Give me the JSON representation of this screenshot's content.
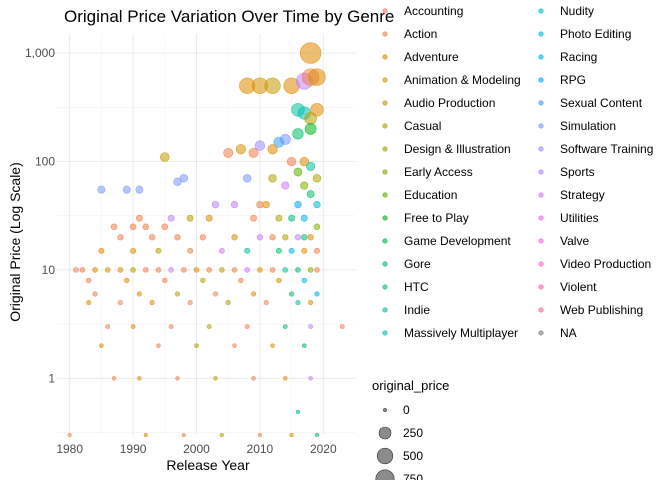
{
  "chart_data": {
    "type": "scatter",
    "title": "Original Price Variation Over Time by Genre",
    "xlabel": "Release Year",
    "ylabel": "Original Price (Log Scale)",
    "xlim": [
      1978,
      2025
    ],
    "ylim": [
      0.3,
      1500
    ],
    "y_scale": "log",
    "grid": true,
    "x_ticks": [
      1980,
      1990,
      2000,
      2010,
      2020
    ],
    "y_ticks": [
      {
        "value": 1,
        "label": "1"
      },
      {
        "value": 10,
        "label": "10"
      },
      {
        "value": 100,
        "label": "100"
      },
      {
        "value": 1000,
        "label": "1,000"
      }
    ],
    "legend_title": "genre",
    "legend": [
      {
        "name": "Accounting",
        "color": "#F8766D"
      },
      {
        "name": "Action",
        "color": "#F07E4B"
      },
      {
        "name": "Adventure",
        "color": "#E08B00"
      },
      {
        "name": "Animation & Modeling",
        "color": "#D39200"
      },
      {
        "name": "Audio Production",
        "color": "#C49A00"
      },
      {
        "name": "Casual",
        "color": "#B3A000"
      },
      {
        "name": "Design & Illustration",
        "color": "#9FA600"
      },
      {
        "name": "Early Access",
        "color": "#85AD00"
      },
      {
        "name": "Education",
        "color": "#5EB300"
      },
      {
        "name": "Free to Play",
        "color": "#00B81F"
      },
      {
        "name": "Game Development",
        "color": "#00BB4E"
      },
      {
        "name": "Gore",
        "color": "#00BE6C"
      },
      {
        "name": "HTC",
        "color": "#00C087"
      },
      {
        "name": "Indie",
        "color": "#00C19F"
      },
      {
        "name": "Massively Multiplayer",
        "color": "#00C0B5"
      },
      {
        "name": "Nudity",
        "color": "#00BECB"
      },
      {
        "name": "Photo Editing",
        "color": "#00BADE"
      },
      {
        "name": "Racing",
        "color": "#00B4EF"
      },
      {
        "name": "RPG",
        "color": "#00ABFD"
      },
      {
        "name": "Sexual Content",
        "color": "#35A2FF"
      },
      {
        "name": "Simulation",
        "color": "#7997FF"
      },
      {
        "name": "Software Training",
        "color": "#9F8CFF"
      },
      {
        "name": "Sports",
        "color": "#BD81FF"
      },
      {
        "name": "Strategy",
        "color": "#D575FE"
      },
      {
        "name": "Utilities",
        "color": "#E76BF3"
      },
      {
        "name": "Valve",
        "color": "#F564E3"
      },
      {
        "name": "Video Production",
        "color": "#FD61D1"
      },
      {
        "name": "Violent",
        "color": "#FF64B0"
      },
      {
        "name": "Web Publishing",
        "color": "#FF6C91"
      },
      {
        "name": "NA",
        "color": "#7F7F7F"
      }
    ],
    "size_legend": {
      "title": "original_price",
      "values": [
        0,
        250,
        500,
        750
      ]
    },
    "points": [
      {
        "x": 2018,
        "y": 1000,
        "size": 1000,
        "genre": "Adventure"
      },
      {
        "x": 2008,
        "y": 500,
        "size": 500,
        "genre": "Adventure"
      },
      {
        "x": 2010,
        "y": 500,
        "size": 500,
        "genre": "Animation & Modeling"
      },
      {
        "x": 2012,
        "y": 500,
        "size": 500,
        "genre": "Audio Production"
      },
      {
        "x": 2015,
        "y": 500,
        "size": 500,
        "genre": "Adventure"
      },
      {
        "x": 2017,
        "y": 550,
        "size": 550,
        "genre": "Sports"
      },
      {
        "x": 2018,
        "y": 600,
        "size": 600,
        "genre": "Action"
      },
      {
        "x": 2019,
        "y": 600,
        "size": 600,
        "genre": "Adventure"
      },
      {
        "x": 2016,
        "y": 300,
        "size": 300,
        "genre": "Indie"
      },
      {
        "x": 2017,
        "y": 280,
        "size": 280,
        "genre": "Massively Multiplayer"
      },
      {
        "x": 2018,
        "y": 250,
        "size": 250,
        "genre": "Casual"
      },
      {
        "x": 2019,
        "y": 300,
        "size": 300,
        "genre": "Adventure"
      },
      {
        "x": 2018,
        "y": 200,
        "size": 200,
        "genre": "Free to Play"
      },
      {
        "x": 2016,
        "y": 180,
        "size": 180,
        "genre": "Gore"
      },
      {
        "x": 2014,
        "y": 160,
        "size": 160,
        "genre": "Simulation"
      },
      {
        "x": 2013,
        "y": 150,
        "size": 150,
        "genre": "Sexual Content"
      },
      {
        "x": 2012,
        "y": 130,
        "size": 130,
        "genre": "Adventure"
      },
      {
        "x": 2010,
        "y": 140,
        "size": 140,
        "genre": "Software Training"
      },
      {
        "x": 2009,
        "y": 120,
        "size": 120,
        "genre": "Action"
      },
      {
        "x": 2005,
        "y": 120,
        "size": 120,
        "genre": "Action"
      },
      {
        "x": 2007,
        "y": 130,
        "size": 130,
        "genre": "Animation & Modeling"
      },
      {
        "x": 1995,
        "y": 110,
        "size": 110,
        "genre": "Audio Production"
      },
      {
        "x": 2015,
        "y": 100,
        "size": 100,
        "genre": "Action"
      },
      {
        "x": 2017,
        "y": 100,
        "size": 100,
        "genre": "Adventure"
      },
      {
        "x": 2016,
        "y": 80,
        "size": 80,
        "genre": "Education"
      },
      {
        "x": 2018,
        "y": 90,
        "size": 90,
        "genre": "Indie"
      },
      {
        "x": 2019,
        "y": 70,
        "size": 70,
        "genre": "Casual"
      },
      {
        "x": 2017,
        "y": 60,
        "size": 60,
        "genre": "Early Access"
      },
      {
        "x": 2014,
        "y": 60,
        "size": 60,
        "genre": "Strategy"
      },
      {
        "x": 2012,
        "y": 70,
        "size": 70,
        "genre": "Casual"
      },
      {
        "x": 2008,
        "y": 70,
        "size": 70,
        "genre": "Simulation"
      },
      {
        "x": 1998,
        "y": 70,
        "size": 70,
        "genre": "Simulation"
      },
      {
        "x": 1997,
        "y": 65,
        "size": 65,
        "genre": "Simulation"
      },
      {
        "x": 1991,
        "y": 55,
        "size": 55,
        "genre": "Simulation"
      },
      {
        "x": 1989,
        "y": 55,
        "size": 55,
        "genre": "Simulation"
      },
      {
        "x": 1985,
        "y": 55,
        "size": 55,
        "genre": "Simulation"
      },
      {
        "x": 2003,
        "y": 40,
        "size": 40,
        "genre": "Sports"
      },
      {
        "x": 2006,
        "y": 40,
        "size": 40,
        "genre": "Sports"
      },
      {
        "x": 2010,
        "y": 40,
        "size": 40,
        "genre": "Action"
      },
      {
        "x": 2011,
        "y": 40,
        "size": 40,
        "genre": "Adventure"
      },
      {
        "x": 2016,
        "y": 40,
        "size": 40,
        "genre": "RPG"
      },
      {
        "x": 2018,
        "y": 50,
        "size": 50,
        "genre": "Gore"
      },
      {
        "x": 2019,
        "y": 40,
        "size": 40,
        "genre": "Nudity"
      },
      {
        "x": 2017,
        "y": 30,
        "size": 30,
        "genre": "Racing"
      },
      {
        "x": 2015,
        "y": 30,
        "size": 30,
        "genre": "HTC"
      },
      {
        "x": 2013,
        "y": 30,
        "size": 30,
        "genre": "Casual"
      },
      {
        "x": 2009,
        "y": 30,
        "size": 30,
        "genre": "Action"
      },
      {
        "x": 1999,
        "y": 30,
        "size": 30,
        "genre": "Casual"
      },
      {
        "x": 2002,
        "y": 30,
        "size": 30,
        "genre": "Adventure"
      },
      {
        "x": 1996,
        "y": 30,
        "size": 30,
        "genre": "Sports"
      },
      {
        "x": 1991,
        "y": 30,
        "size": 30,
        "genre": "Action"
      },
      {
        "x": 1995,
        "y": 25,
        "size": 25,
        "genre": "Action"
      },
      {
        "x": 1992,
        "y": 25,
        "size": 25,
        "genre": "Action"
      },
      {
        "x": 1990,
        "y": 25,
        "size": 25,
        "genre": "Action"
      },
      {
        "x": 1987,
        "y": 25,
        "size": 25,
        "genre": "Action"
      },
      {
        "x": 2019,
        "y": 25,
        "size": 25,
        "genre": "Early Access"
      },
      {
        "x": 2018,
        "y": 20,
        "size": 20,
        "genre": "Adventure"
      },
      {
        "x": 2017,
        "y": 20,
        "size": 20,
        "genre": "Gore"
      },
      {
        "x": 2016,
        "y": 20,
        "size": 20,
        "genre": "Sports"
      },
      {
        "x": 2014,
        "y": 20,
        "size": 20,
        "genre": "Casual"
      },
      {
        "x": 2012,
        "y": 20,
        "size": 20,
        "genre": "Action"
      },
      {
        "x": 2010,
        "y": 20,
        "size": 20,
        "genre": "Strategy"
      },
      {
        "x": 2006,
        "y": 20,
        "size": 20,
        "genre": "Adventure"
      },
      {
        "x": 2001,
        "y": 20,
        "size": 20,
        "genre": "Action"
      },
      {
        "x": 1997,
        "y": 20,
        "size": 20,
        "genre": "Action"
      },
      {
        "x": 1993,
        "y": 20,
        "size": 20,
        "genre": "Action"
      },
      {
        "x": 1988,
        "y": 20,
        "size": 20,
        "genre": "Action"
      },
      {
        "x": 1985,
        "y": 15,
        "size": 15,
        "genre": "Adventure"
      },
      {
        "x": 1990,
        "y": 15,
        "size": 15,
        "genre": "Adventure"
      },
      {
        "x": 1994,
        "y": 15,
        "size": 15,
        "genre": "Casual"
      },
      {
        "x": 1999,
        "y": 15,
        "size": 15,
        "genre": "Action"
      },
      {
        "x": 2004,
        "y": 15,
        "size": 15,
        "genre": "Strategy"
      },
      {
        "x": 2008,
        "y": 15,
        "size": 15,
        "genre": "Indie"
      },
      {
        "x": 2013,
        "y": 15,
        "size": 15,
        "genre": "Gore"
      },
      {
        "x": 2015,
        "y": 15,
        "size": 15,
        "genre": "Racing"
      },
      {
        "x": 2017,
        "y": 15,
        "size": 15,
        "genre": "Adventure"
      },
      {
        "x": 2019,
        "y": 15,
        "size": 15,
        "genre": "Action"
      },
      {
        "x": 1981,
        "y": 10,
        "size": 10,
        "genre": "Action"
      },
      {
        "x": 1982,
        "y": 10,
        "size": 10,
        "genre": "Action"
      },
      {
        "x": 1984,
        "y": 10,
        "size": 10,
        "genre": "Adventure"
      },
      {
        "x": 1986,
        "y": 10,
        "size": 10,
        "genre": "Animation & Modeling"
      },
      {
        "x": 1988,
        "y": 10,
        "size": 10,
        "genre": "Adventure"
      },
      {
        "x": 1990,
        "y": 10,
        "size": 10,
        "genre": "Casual"
      },
      {
        "x": 1992,
        "y": 10,
        "size": 10,
        "genre": "Action"
      },
      {
        "x": 1994,
        "y": 10,
        "size": 10,
        "genre": "Action"
      },
      {
        "x": 1996,
        "y": 10,
        "size": 10,
        "genre": "Sports"
      },
      {
        "x": 1998,
        "y": 10,
        "size": 10,
        "genre": "Action"
      },
      {
        "x": 2000,
        "y": 10,
        "size": 10,
        "genre": "Adventure"
      },
      {
        "x": 2002,
        "y": 10,
        "size": 10,
        "genre": "Action"
      },
      {
        "x": 2004,
        "y": 10,
        "size": 10,
        "genre": "Casual"
      },
      {
        "x": 2006,
        "y": 10,
        "size": 10,
        "genre": "Action"
      },
      {
        "x": 2008,
        "y": 10,
        "size": 10,
        "genre": "Strategy"
      },
      {
        "x": 2010,
        "y": 10,
        "size": 10,
        "genre": "Adventure"
      },
      {
        "x": 2012,
        "y": 10,
        "size": 10,
        "genre": "Action"
      },
      {
        "x": 2014,
        "y": 10,
        "size": 10,
        "genre": "Indie"
      },
      {
        "x": 2016,
        "y": 10,
        "size": 10,
        "genre": "Gore"
      },
      {
        "x": 2018,
        "y": 10,
        "size": 10,
        "genre": "Early Access"
      },
      {
        "x": 2019,
        "y": 10,
        "size": 10,
        "genre": "Action"
      },
      {
        "x": 1983,
        "y": 8,
        "size": 8,
        "genre": "Action"
      },
      {
        "x": 1989,
        "y": 8,
        "size": 8,
        "genre": "Adventure"
      },
      {
        "x": 1995,
        "y": 8,
        "size": 8,
        "genre": "Action"
      },
      {
        "x": 2001,
        "y": 8,
        "size": 8,
        "genre": "Casual"
      },
      {
        "x": 2007,
        "y": 8,
        "size": 8,
        "genre": "Action"
      },
      {
        "x": 2013,
        "y": 8,
        "size": 8,
        "genre": "Adventure"
      },
      {
        "x": 2017,
        "y": 8,
        "size": 8,
        "genre": "Racing"
      },
      {
        "x": 1984,
        "y": 6,
        "size": 6,
        "genre": "Action"
      },
      {
        "x": 1991,
        "y": 6,
        "size": 6,
        "genre": "Adventure"
      },
      {
        "x": 1997,
        "y": 6,
        "size": 6,
        "genre": "Casual"
      },
      {
        "x": 2003,
        "y": 6,
        "size": 6,
        "genre": "Action"
      },
      {
        "x": 2009,
        "y": 6,
        "size": 6,
        "genre": "Adventure"
      },
      {
        "x": 2015,
        "y": 6,
        "size": 6,
        "genre": "Gore"
      },
      {
        "x": 2019,
        "y": 6,
        "size": 6,
        "genre": "RPG"
      },
      {
        "x": 1983,
        "y": 5,
        "size": 5,
        "genre": "Adventure"
      },
      {
        "x": 1988,
        "y": 5,
        "size": 5,
        "genre": "Action"
      },
      {
        "x": 1993,
        "y": 5,
        "size": 5,
        "genre": "Adventure"
      },
      {
        "x": 1999,
        "y": 5,
        "size": 5,
        "genre": "Action"
      },
      {
        "x": 2005,
        "y": 5,
        "size": 5,
        "genre": "Casual"
      },
      {
        "x": 2011,
        "y": 5,
        "size": 5,
        "genre": "Action"
      },
      {
        "x": 2016,
        "y": 5,
        "size": 5,
        "genre": "Indie"
      },
      {
        "x": 2018,
        "y": 5,
        "size": 5,
        "genre": "Adventure"
      },
      {
        "x": 1986,
        "y": 3,
        "size": 3,
        "genre": "Action"
      },
      {
        "x": 1990,
        "y": 3,
        "size": 3,
        "genre": "Adventure"
      },
      {
        "x": 1996,
        "y": 3,
        "size": 3,
        "genre": "Action"
      },
      {
        "x": 2002,
        "y": 3,
        "size": 3,
        "genre": "Casual"
      },
      {
        "x": 2008,
        "y": 3,
        "size": 3,
        "genre": "Action"
      },
      {
        "x": 2014,
        "y": 3,
        "size": 3,
        "genre": "Gore"
      },
      {
        "x": 2018,
        "y": 3,
        "size": 3,
        "genre": "Sports"
      },
      {
        "x": 2023,
        "y": 3,
        "size": 3,
        "genre": "Action"
      },
      {
        "x": 1985,
        "y": 2,
        "size": 2,
        "genre": "Adventure"
      },
      {
        "x": 1994,
        "y": 2,
        "size": 2,
        "genre": "Action"
      },
      {
        "x": 2000,
        "y": 2,
        "size": 2,
        "genre": "Casual"
      },
      {
        "x": 2006,
        "y": 2,
        "size": 2,
        "genre": "Action"
      },
      {
        "x": 2012,
        "y": 2,
        "size": 2,
        "genre": "Adventure"
      },
      {
        "x": 2017,
        "y": 2,
        "size": 2,
        "genre": "Gore"
      },
      {
        "x": 1987,
        "y": 1,
        "size": 1,
        "genre": "Action"
      },
      {
        "x": 1991,
        "y": 1,
        "size": 1,
        "genre": "Adventure"
      },
      {
        "x": 1997,
        "y": 1,
        "size": 1,
        "genre": "Action"
      },
      {
        "x": 2003,
        "y": 1,
        "size": 1,
        "genre": "Casual"
      },
      {
        "x": 2009,
        "y": 1,
        "size": 1,
        "genre": "Action"
      },
      {
        "x": 2014,
        "y": 1,
        "size": 1,
        "genre": "Adventure"
      },
      {
        "x": 2018,
        "y": 1,
        "size": 1,
        "genre": "Sports"
      },
      {
        "x": 2016,
        "y": 0.49,
        "size": 0.49,
        "genre": "Gore"
      },
      {
        "x": 1980,
        "y": 0.3,
        "size": 0.3,
        "genre": "Action"
      },
      {
        "x": 1992,
        "y": 0.3,
        "size": 0.3,
        "genre": "Adventure"
      },
      {
        "x": 1998,
        "y": 0.3,
        "size": 0.3,
        "genre": "Action"
      },
      {
        "x": 2004,
        "y": 0.3,
        "size": 0.3,
        "genre": "Casual"
      },
      {
        "x": 2010,
        "y": 0.3,
        "size": 0.3,
        "genre": "Action"
      },
      {
        "x": 2015,
        "y": 0.3,
        "size": 0.3,
        "genre": "Adventure"
      },
      {
        "x": 2019,
        "y": 0.3,
        "size": 0.3,
        "genre": "Gore"
      }
    ]
  }
}
